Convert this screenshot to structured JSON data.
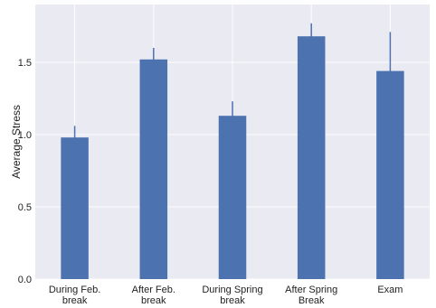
{
  "chart_data": {
    "type": "bar",
    "title": "",
    "xlabel": "",
    "ylabel": "Average Stress",
    "categories": [
      [
        "During Feb.",
        "break"
      ],
      [
        "After Feb.",
        "break"
      ],
      [
        "During Spring",
        "break"
      ],
      [
        "After Spring",
        "Break"
      ],
      [
        "Exam"
      ]
    ],
    "values": [
      0.98,
      1.52,
      1.13,
      1.68,
      1.44
    ],
    "error_upper": [
      1.06,
      1.6,
      1.23,
      1.77,
      1.71
    ],
    "error_lower": [
      0.9,
      1.44,
      1.03,
      1.59,
      1.17
    ],
    "ylim": [
      0.0,
      1.9
    ],
    "yticks": [
      "0.0",
      "0.5",
      "1.0",
      "1.5"
    ],
    "ytick_values": [
      0.0,
      0.5,
      1.0,
      1.5
    ],
    "grid": true,
    "background_color": "#EAEAF2",
    "bar_color": "#4C72B0",
    "grid_color": "#FFFFFF"
  }
}
